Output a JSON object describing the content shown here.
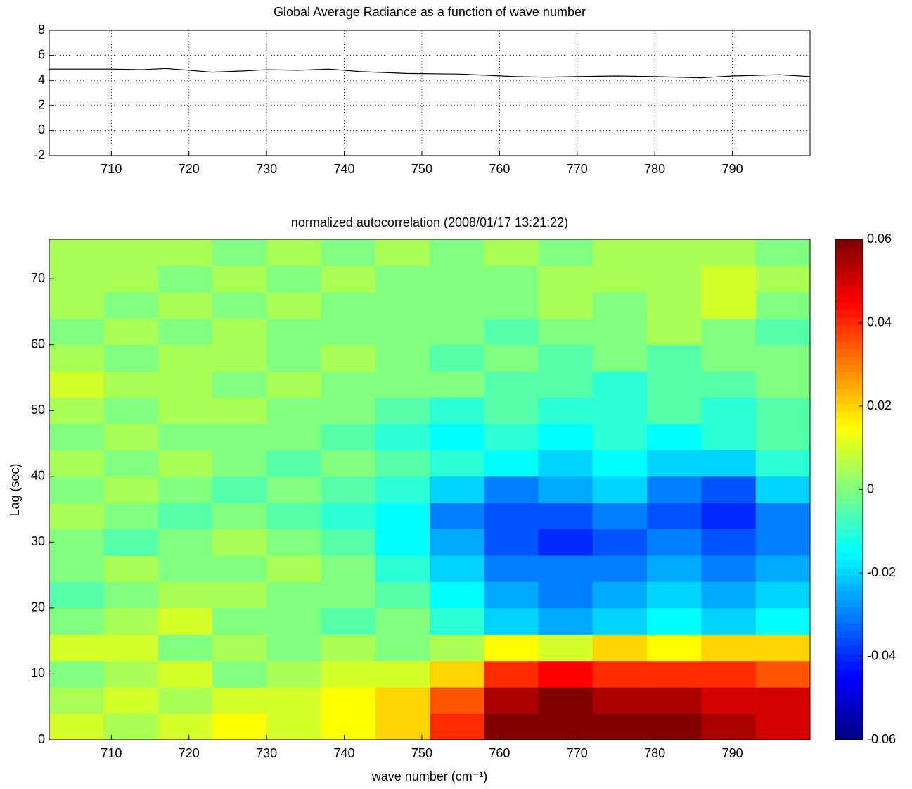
{
  "chart_data": [
    {
      "type": "line",
      "title": "Global Average Radiance as a function of wave number",
      "x": [
        702,
        706,
        710,
        714,
        717,
        720,
        723,
        727,
        730,
        734,
        738,
        742,
        748,
        755,
        762,
        766,
        770,
        775,
        780,
        786,
        790,
        796,
        800
      ],
      "values": [
        4.9,
        4.9,
        4.9,
        4.85,
        4.95,
        4.8,
        4.65,
        4.75,
        4.85,
        4.8,
        4.9,
        4.7,
        4.55,
        4.5,
        4.3,
        4.25,
        4.3,
        4.35,
        4.3,
        4.2,
        4.35,
        4.45,
        4.3
      ],
      "color": "#000000",
      "xlim": [
        702,
        800
      ],
      "ylim": [
        -2,
        8
      ],
      "xticks": [
        710,
        720,
        730,
        740,
        750,
        760,
        770,
        780,
        790
      ],
      "yticks": [
        -2,
        0,
        2,
        4,
        6,
        8
      ],
      "grid": true
    },
    {
      "type": "heatmap",
      "title": "normalized autocorrelation (2008/01/17 13:21:22)",
      "xlabel": "wave number (cm⁻¹)",
      "ylabel": "Lag (sec)",
      "xbins": [
        702,
        709,
        716,
        723,
        730,
        737,
        744,
        751,
        758,
        765,
        772,
        779,
        786,
        793,
        800
      ],
      "ybins": [
        0,
        4,
        8,
        12,
        16,
        20,
        24,
        28,
        32,
        36,
        40,
        44,
        48,
        52,
        56,
        60,
        64,
        68,
        72,
        76
      ],
      "values": [
        [
          0.01,
          0.005,
          0.01,
          0.015,
          0.01,
          0.015,
          0.02,
          0.04,
          0.06,
          0.06,
          0.06,
          0.06,
          0.055,
          0.05
        ],
        [
          0.005,
          0.01,
          0.005,
          0.01,
          0.01,
          0.015,
          0.02,
          0.035,
          0.055,
          0.06,
          0.055,
          0.055,
          0.05,
          0.05
        ],
        [
          0,
          0.005,
          0.01,
          0,
          0.005,
          0.01,
          0.01,
          0.02,
          0.04,
          0.045,
          0.04,
          0.04,
          0.04,
          0.035
        ],
        [
          0.01,
          0.01,
          0,
          0.005,
          0,
          0.005,
          0,
          0.005,
          0.015,
          0.01,
          0.02,
          0.015,
          0.02,
          0.02
        ],
        [
          0,
          0.005,
          0.01,
          0,
          0,
          -0.005,
          0,
          -0.01,
          -0.02,
          -0.025,
          -0.02,
          -0.015,
          -0.02,
          -0.015
        ],
        [
          -0.005,
          0,
          0.005,
          0.005,
          0,
          0,
          -0.005,
          -0.015,
          -0.025,
          -0.03,
          -0.025,
          -0.02,
          -0.025,
          -0.02
        ],
        [
          0,
          0.005,
          0,
          0,
          0.005,
          0,
          -0.01,
          -0.02,
          -0.03,
          -0.03,
          -0.03,
          -0.025,
          -0.03,
          -0.025
        ],
        [
          0,
          -0.005,
          0,
          0.005,
          0,
          -0.005,
          -0.015,
          -0.025,
          -0.035,
          -0.04,
          -0.035,
          -0.03,
          -0.035,
          -0.03
        ],
        [
          0.005,
          0,
          -0.005,
          0,
          -0.005,
          -0.01,
          -0.015,
          -0.03,
          -0.035,
          -0.035,
          -0.03,
          -0.035,
          -0.04,
          -0.03
        ],
        [
          0,
          0.005,
          0,
          -0.005,
          0,
          -0.005,
          -0.01,
          -0.02,
          -0.03,
          -0.025,
          -0.02,
          -0.03,
          -0.035,
          -0.02
        ],
        [
          0.005,
          0,
          0.005,
          0,
          -0.005,
          0,
          -0.005,
          -0.01,
          -0.015,
          -0.02,
          -0.015,
          -0.02,
          -0.02,
          -0.01
        ],
        [
          0,
          0.005,
          0,
          0,
          0,
          -0.005,
          -0.01,
          -0.015,
          -0.01,
          -0.015,
          -0.01,
          -0.015,
          -0.01,
          -0.005
        ],
        [
          0.005,
          0,
          0.005,
          0.005,
          0,
          0,
          -0.005,
          -0.01,
          -0.005,
          -0.01,
          -0.01,
          -0.005,
          -0.01,
          -0.005
        ],
        [
          0.01,
          0.005,
          0.005,
          0,
          0.005,
          0,
          0,
          0,
          -0.005,
          -0.005,
          -0.01,
          -0.005,
          -0.005,
          0
        ],
        [
          0.005,
          0,
          0.005,
          0.005,
          0,
          0.005,
          0,
          -0.005,
          0,
          -0.005,
          0,
          -0.005,
          0,
          0
        ],
        [
          0,
          0.005,
          0,
          0.005,
          0,
          0,
          0,
          0,
          -0.005,
          0,
          0,
          0.005,
          0,
          -0.005
        ],
        [
          0.005,
          0,
          0.005,
          0,
          0.005,
          0,
          0,
          0,
          0,
          0.005,
          0,
          0.005,
          0.01,
          0
        ],
        [
          0.005,
          0.005,
          0,
          0.005,
          0,
          0.005,
          0,
          0,
          0,
          0.005,
          0.005,
          0.005,
          0.01,
          0.005
        ],
        [
          0.005,
          0.005,
          0.005,
          0,
          0.005,
          0,
          0.005,
          0,
          0.005,
          0,
          0.005,
          0.005,
          0.005,
          0
        ]
      ],
      "colormap": "jet",
      "xlim": [
        702,
        800
      ],
      "ylim": [
        0,
        76
      ],
      "xticks": [
        710,
        720,
        730,
        740,
        750,
        760,
        770,
        780,
        790
      ],
      "yticks": [
        0,
        10,
        20,
        30,
        40,
        50,
        60,
        70
      ],
      "clim": [
        -0.06,
        0.06
      ],
      "cticks": [
        -0.06,
        -0.04,
        -0.02,
        0,
        0.02,
        0.04,
        0.06
      ]
    }
  ]
}
